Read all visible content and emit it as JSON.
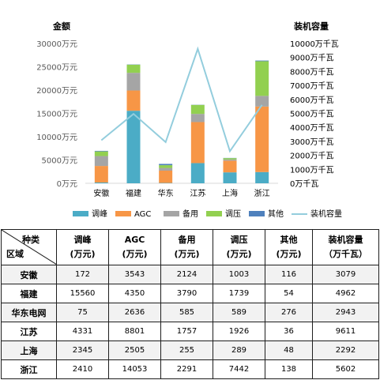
{
  "chart_data": {
    "type": "bar",
    "stacked": true,
    "categories": [
      "安徽",
      "福建",
      "华东",
      "江苏",
      "上海",
      "浙江"
    ],
    "series": [
      {
        "name": "调峰",
        "values": [
          172,
          15560,
          75,
          4331,
          2345,
          2410
        ],
        "color": "#4bacc6"
      },
      {
        "name": "AGC",
        "values": [
          3543,
          4350,
          2636,
          8801,
          2505,
          14053
        ],
        "color": "#f79646"
      },
      {
        "name": "备用",
        "values": [
          2124,
          3790,
          585,
          1757,
          255,
          2291
        ],
        "color": "#a5a5a5"
      },
      {
        "name": "调压",
        "values": [
          1003,
          1739,
          589,
          1926,
          289,
          7442
        ],
        "color": "#92d050"
      },
      {
        "name": "其他",
        "values": [
          116,
          54,
          276,
          36,
          48,
          138
        ],
        "color": "#4f81bd"
      }
    ],
    "line_series": {
      "name": "装机容量",
      "values": [
        3079,
        4962,
        2943,
        9611,
        2292,
        5602
      ],
      "color": "#93cddd",
      "axis": "right"
    },
    "y_left": {
      "label": "金额",
      "ticks": [
        "0万元",
        "5000万元",
        "10000万元",
        "15000万元",
        "20000万元",
        "25000万元",
        "30000万元"
      ],
      "range": [
        0,
        30000
      ]
    },
    "y_right": {
      "label": "装机容量",
      "ticks": [
        "0万千瓦",
        "1000万千瓦",
        "2000万千瓦",
        "3000万千瓦",
        "4000万千瓦",
        "5000万千瓦",
        "6000万千瓦",
        "7000万千瓦",
        "8000万千瓦",
        "9000万千瓦",
        "10000万千瓦"
      ],
      "range": [
        0,
        10000
      ]
    },
    "grid": false,
    "legend": "bottom"
  },
  "table": {
    "corner_top": "种类",
    "corner_bottom": "区域",
    "columns": [
      {
        "l1": "调峰",
        "l2": "(万元)"
      },
      {
        "l1": "AGC",
        "l2": "(万元)"
      },
      {
        "l1": "备用",
        "l2": "(万元)"
      },
      {
        "l1": "调压",
        "l2": "(万元)"
      },
      {
        "l1": "其他",
        "l2": "(万元)"
      },
      {
        "l1": "装机容量",
        "l2": "（万千瓦）"
      }
    ],
    "rows": [
      {
        "region": "安徽",
        "values": [
          "172",
          "3543",
          "2124",
          "1003",
          "116",
          "3079"
        ]
      },
      {
        "region": "福建",
        "values": [
          "15560",
          "4350",
          "3790",
          "1739",
          "54",
          "4962"
        ]
      },
      {
        "region": "华东电网",
        "values": [
          "75",
          "2636",
          "585",
          "589",
          "276",
          "2943"
        ]
      },
      {
        "region": "江苏",
        "values": [
          "4331",
          "8801",
          "1757",
          "1926",
          "36",
          "9611"
        ]
      },
      {
        "region": "上海",
        "values": [
          "2345",
          "2505",
          "255",
          "289",
          "48",
          "2292"
        ]
      },
      {
        "region": "浙江",
        "values": [
          "2410",
          "14053",
          "2291",
          "7442",
          "138",
          "5602"
        ]
      }
    ]
  }
}
